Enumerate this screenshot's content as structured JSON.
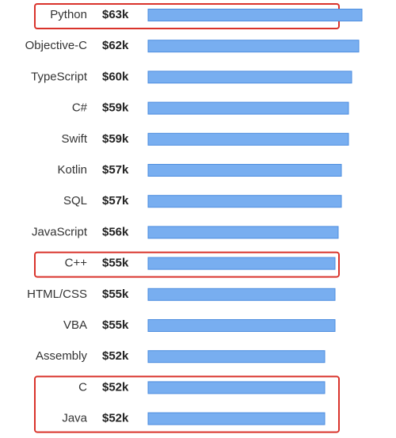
{
  "chart_data": {
    "type": "bar",
    "orientation": "horizontal",
    "categories": [
      "Python",
      "Objective-C",
      "TypeScript",
      "C#",
      "Swift",
      "Kotlin",
      "SQL",
      "JavaScript",
      "C++",
      "HTML/CSS",
      "VBA",
      "Assembly",
      "C",
      "Java"
    ],
    "values": [
      63,
      62,
      60,
      59,
      59,
      57,
      57,
      56,
      55,
      55,
      55,
      52,
      52,
      52
    ],
    "value_labels": [
      "$63k",
      "$62k",
      "$60k",
      "$59k",
      "$59k",
      "$57k",
      "$57k",
      "$56k",
      "$55k",
      "$55k",
      "$55k",
      "$52k",
      "$52k",
      "$52k"
    ],
    "title": "",
    "xlabel": "",
    "ylabel": "",
    "highlighted_groups": [
      [
        "Python"
      ],
      [
        "C++"
      ],
      [
        "C",
        "Java"
      ]
    ],
    "grid": false,
    "legend": "none"
  },
  "colors": {
    "bar_fill": "#78aef0",
    "bar_stroke": "#4d8ddf",
    "highlight": "#d9332b",
    "text": "#333333"
  }
}
